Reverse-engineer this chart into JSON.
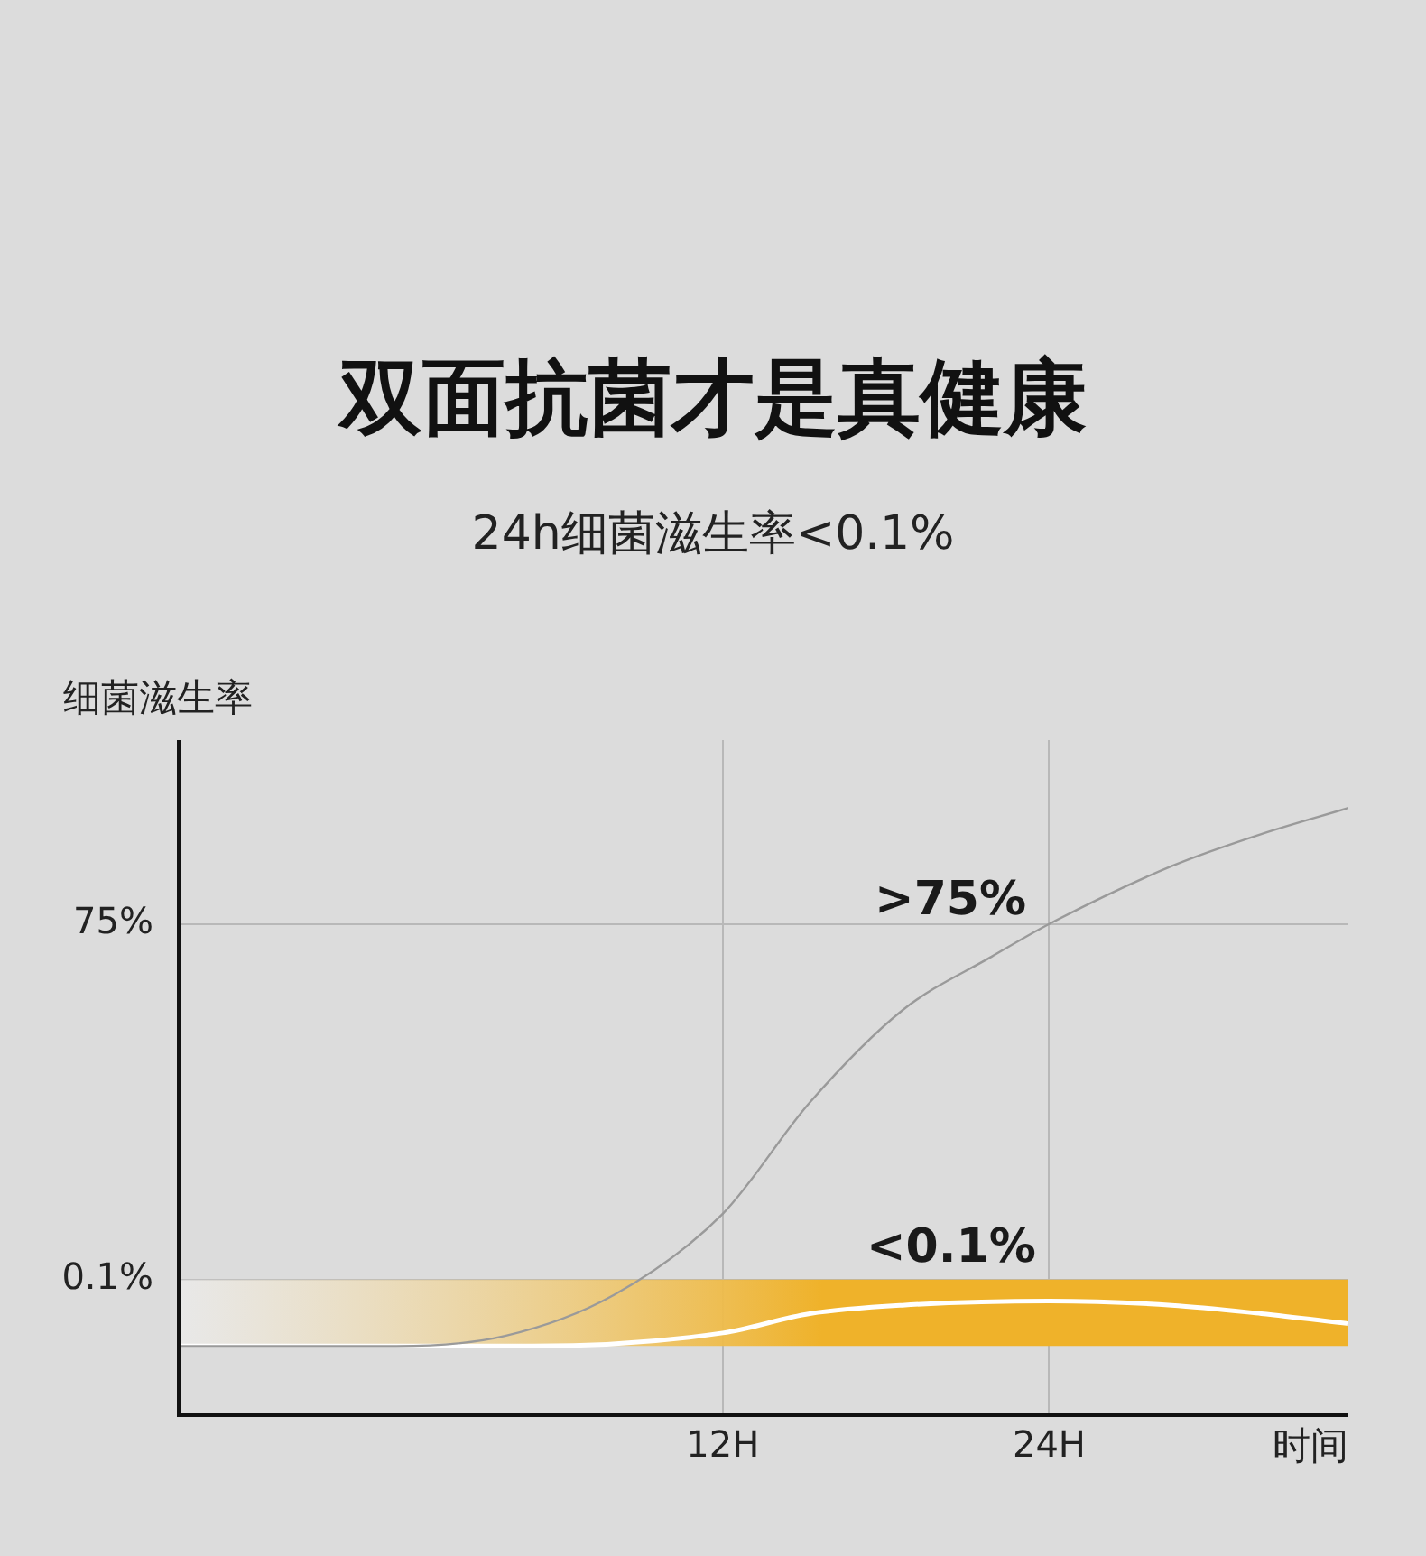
{
  "chart_data": {
    "type": "line",
    "title": "双面抗菌才是真健康",
    "subtitle": "24h细菌滋生率<0.1%",
    "ylabel": "细菌滋生率",
    "xlabel": "时间",
    "series": [
      {
        "color": "#9a9a9a",
        "x": [
          -8,
          0,
          4,
          8,
          12,
          15.2,
          18.6,
          21.9,
          24,
          28.5,
          31.8,
          35
        ],
        "values": [
          0.029,
          0.029,
          0.035,
          0.075,
          0.34,
          2.7,
          15,
          41,
          75,
          220,
          400,
          650
        ]
      },
      {
        "color": "#ffffff",
        "x": [
          -8,
          5,
          12,
          15.2,
          18.6,
          24,
          28.5,
          31.8,
          35
        ],
        "values": [
          0.029,
          0.029,
          0.037,
          0.053,
          0.062,
          0.067,
          0.062,
          0.053,
          0.044
        ]
      }
    ],
    "log": "y",
    "xlim": [
      -8,
      35
    ],
    "xticks": [
      {
        "value": 12,
        "label": "12H"
      },
      {
        "value": 24,
        "label": "24H"
      }
    ],
    "ylim": [
      0.008,
      2300
    ],
    "yticks": [
      {
        "value": 0.1,
        "label": "0.1%"
      },
      {
        "value": 75,
        "label": "75%"
      }
    ],
    "bands": [
      {
        "axis": "y",
        "from": 0.029,
        "to": 0.1,
        "color": "#efb22a"
      }
    ],
    "annotations": [
      ">75%",
      "<0.1%"
    ],
    "grid": true,
    "legend": false,
    "marker": "none",
    "line_style": "solid"
  }
}
